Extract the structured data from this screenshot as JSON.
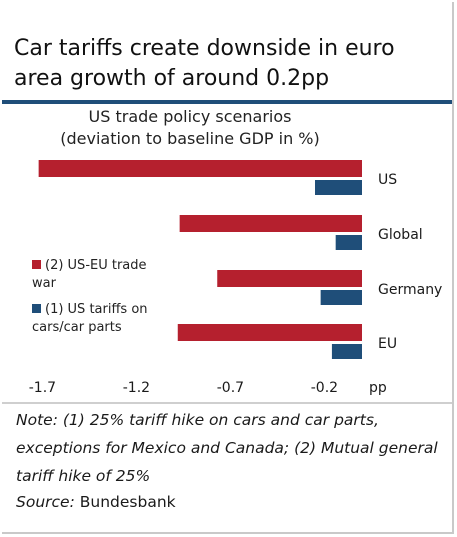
{
  "header": {
    "title": "Car tariffs create downside in euro area growth of around 0.2pp"
  },
  "chart_data": {
    "type": "bar",
    "orientation": "horizontal",
    "title": "US trade policy scenarios",
    "subtitle": "(deviation to baseline GDP in %)",
    "categories": [
      "US",
      "Global",
      "Germany",
      "EU"
    ],
    "series": [
      {
        "name": "(2) US-EU trade war",
        "color": "#b5202e",
        "values": [
          -1.72,
          -0.97,
          -0.77,
          -0.98
        ]
      },
      {
        "name": "(1) US tariffs on cars/car parts",
        "color": "#1f4e79",
        "values": [
          -0.25,
          -0.14,
          -0.22,
          -0.16
        ]
      }
    ],
    "xticks": [
      "-1.7",
      "-1.2",
      "-0.7",
      "-0.2"
    ],
    "xtick_values": [
      -1.7,
      -1.2,
      -0.7,
      -0.2
    ],
    "xunit": "pp",
    "xlim": [
      -1.78,
      0.03
    ],
    "grid": false,
    "legend_position": "left"
  },
  "legend": {
    "items": [
      {
        "label": "(2) US-EU trade war",
        "color": "#b5202e"
      },
      {
        "label": "(1) US tariffs on cars/car parts",
        "color": "#1f4e79"
      }
    ]
  },
  "footer": {
    "note": "Note: (1) 25% tariff hike on cars and car parts, exceptions for Mexico and Canada; (2) Mutual general tariff hike of 25%",
    "source_label": "Source:",
    "source_value": "Bundesbank"
  }
}
